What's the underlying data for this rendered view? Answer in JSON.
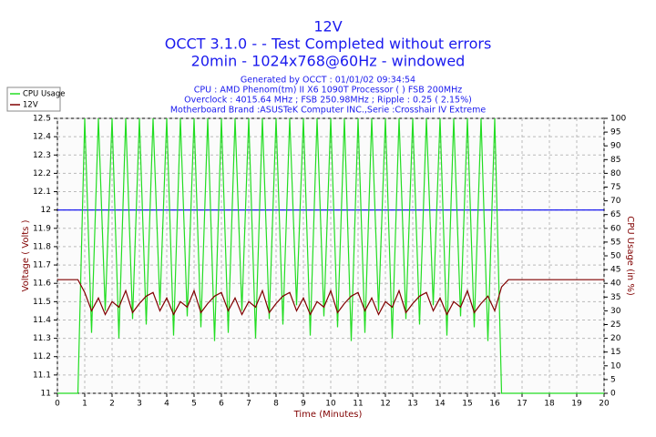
{
  "chart_data": {
    "type": "line",
    "title_lines": [
      "12V",
      "OCCT 3.1.0 -  - Test Completed without errors",
      "20min - 1024x768@60Hz - windowed"
    ],
    "info_lines": [
      "Generated by OCCT : 01/01/02 09:34:54",
      "CPU : AMD Phenom(tm) II X6 1090T Processor (  ) FSB 200MHz",
      "Overclock : 4015.64 MHz ; FSB 250.98MHz ; Ripple : 0.25 ( 2.15%)",
      "Motherboard Brand :ASUSTeK Computer INC.,Serie :Crosshair IV Extreme"
    ],
    "x_label": "Time (Minutes)",
    "y_label": "Voltage ( Volts )",
    "y2_label": "CPU Usage (in %)",
    "x": [
      0,
      0.25,
      0.5,
      0.75,
      1,
      1.25,
      1.5,
      1.75,
      2,
      2.25,
      2.5,
      2.75,
      3,
      3.25,
      3.5,
      3.75,
      4,
      4.25,
      4.5,
      4.75,
      5,
      5.25,
      5.5,
      5.75,
      6,
      6.25,
      6.5,
      6.75,
      7,
      7.25,
      7.5,
      7.75,
      8,
      8.25,
      8.5,
      8.75,
      9,
      9.25,
      9.5,
      9.75,
      10,
      10.25,
      10.5,
      10.75,
      11,
      11.25,
      11.5,
      11.75,
      12,
      12.25,
      12.5,
      12.75,
      13,
      13.25,
      13.5,
      13.75,
      14,
      14.25,
      14.5,
      14.75,
      15,
      15.25,
      15.5,
      15.75,
      16,
      16.25,
      16.5,
      16.75,
      17,
      17.25,
      17.5,
      17.75,
      18,
      18.25,
      18.5,
      18.75,
      19,
      19.25,
      19.5,
      19.75,
      20
    ],
    "series": [
      {
        "name": "CPU Usage",
        "color": "#22dd22",
        "axis": "y2",
        "values": [
          0,
          0,
          0,
          0,
          100,
          22,
          100,
          30,
          100,
          20,
          100,
          27,
          100,
          25,
          100,
          32,
          100,
          21,
          100,
          28,
          100,
          24,
          100,
          19,
          100,
          22,
          100,
          30,
          100,
          20,
          100,
          27,
          100,
          25,
          100,
          32,
          100,
          21,
          100,
          28,
          100,
          24,
          100,
          19,
          100,
          22,
          100,
          30,
          100,
          20,
          100,
          27,
          100,
          25,
          100,
          32,
          100,
          21,
          100,
          28,
          100,
          24,
          100,
          19,
          100,
          0,
          0,
          0,
          0,
          0,
          0,
          0,
          0,
          0,
          0,
          0,
          0,
          0,
          0,
          0,
          0
        ]
      },
      {
        "name": "12V",
        "color": "#800000",
        "values": [
          11.62,
          11.62,
          11.62,
          11.62,
          11.55,
          11.45,
          11.52,
          11.43,
          11.5,
          11.47,
          11.56,
          11.44,
          11.49,
          11.53,
          11.55,
          11.45,
          11.52,
          11.43,
          11.5,
          11.47,
          11.56,
          11.44,
          11.49,
          11.53,
          11.55,
          11.45,
          11.52,
          11.43,
          11.5,
          11.47,
          11.56,
          11.44,
          11.49,
          11.53,
          11.55,
          11.45,
          11.52,
          11.43,
          11.5,
          11.47,
          11.56,
          11.44,
          11.49,
          11.53,
          11.55,
          11.45,
          11.52,
          11.43,
          11.5,
          11.47,
          11.56,
          11.44,
          11.49,
          11.53,
          11.55,
          11.45,
          11.52,
          11.43,
          11.5,
          11.47,
          11.56,
          11.44,
          11.49,
          11.53,
          11.45,
          11.58,
          11.62,
          11.62,
          11.62,
          11.62,
          11.62,
          11.62,
          11.62,
          11.62,
          11.62,
          11.62,
          11.62,
          11.62,
          11.62,
          11.62,
          11.62
        ]
      }
    ],
    "reference_line": {
      "value": 12,
      "color": "#0000ee"
    },
    "xlim": [
      0,
      20
    ],
    "xticks": [
      0,
      1,
      2,
      3,
      4,
      5,
      6,
      7,
      8,
      9,
      10,
      11,
      12,
      13,
      14,
      15,
      16,
      17,
      18,
      19,
      20
    ],
    "ylim": [
      11,
      12.5
    ],
    "yticks": [
      11,
      11.1,
      11.2,
      11.3,
      11.4,
      11.5,
      11.6,
      11.7,
      11.8,
      11.9,
      12,
      12.1,
      12.2,
      12.3,
      12.4,
      12.5
    ],
    "y2lim": [
      0,
      100
    ],
    "y2ticks": [
      0,
      5,
      10,
      15,
      20,
      25,
      30,
      35,
      40,
      45,
      50,
      55,
      60,
      65,
      70,
      75,
      80,
      85,
      90,
      95,
      100
    ],
    "grid": true,
    "legend": "top-left"
  }
}
